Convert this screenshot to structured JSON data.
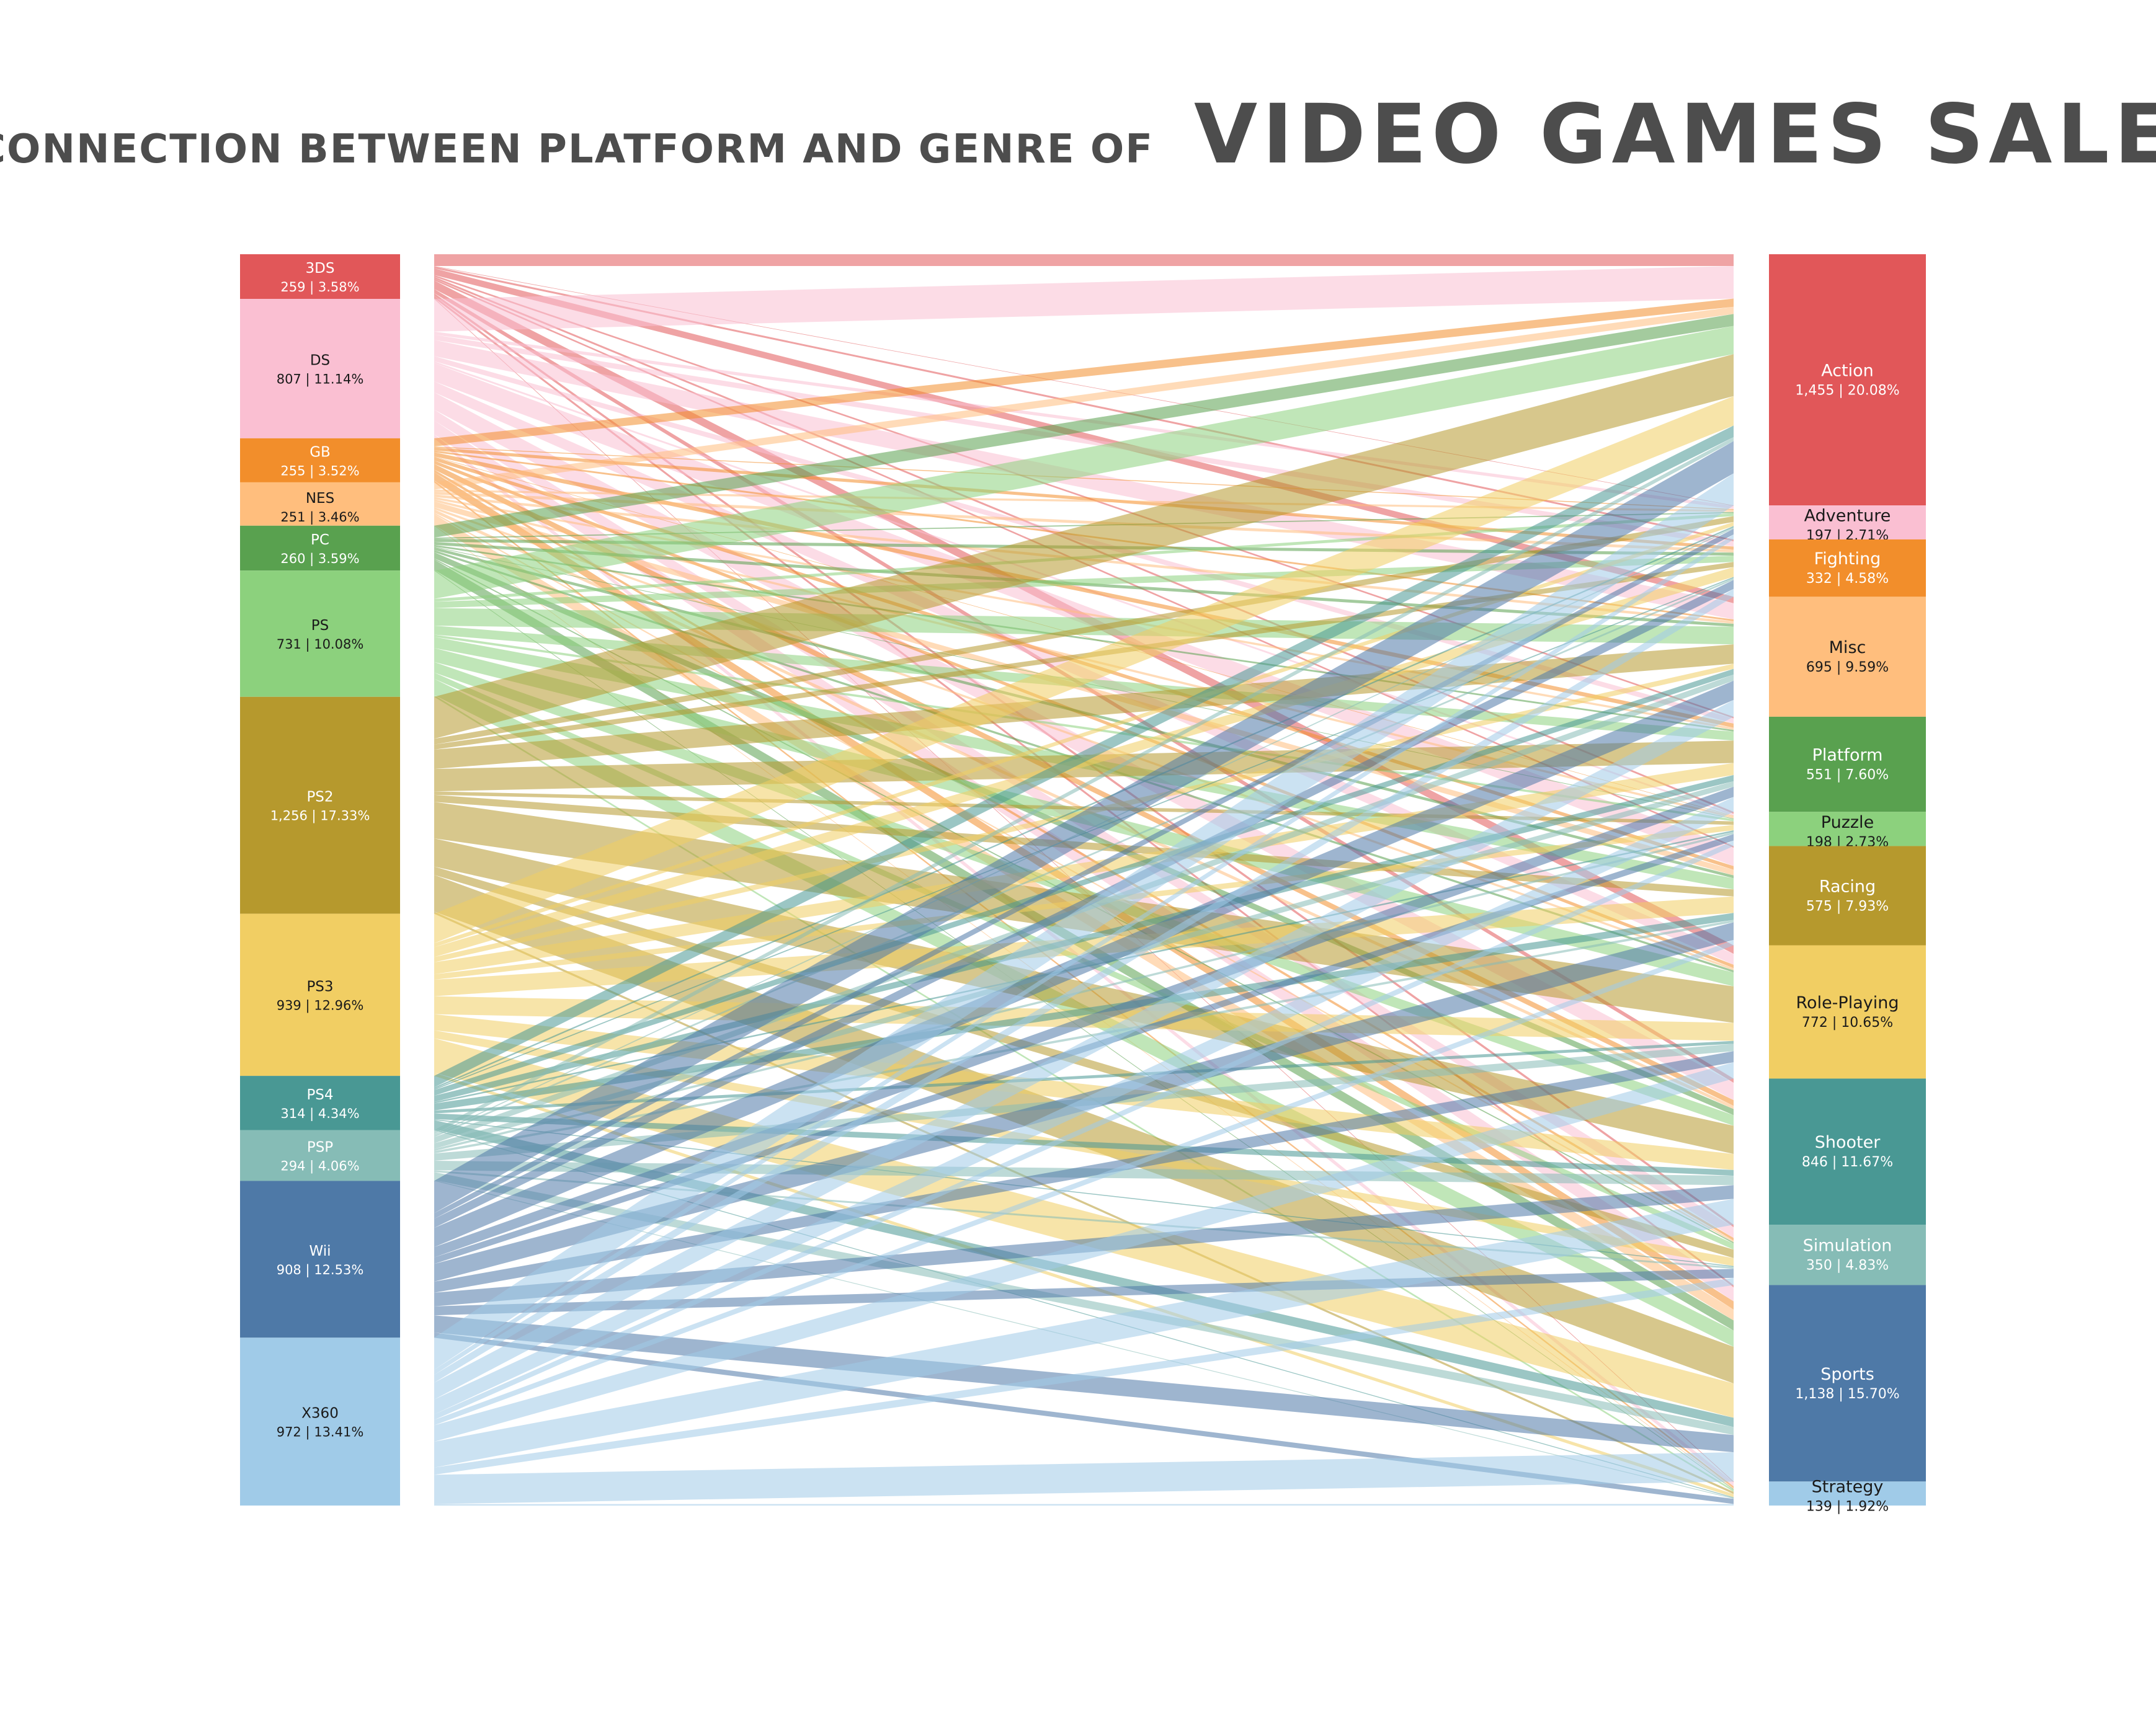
{
  "title": {
    "prefix": "CONNECTION BETWEEN PLATFORM AND GENRE OF",
    "main": "VIDEO GAMES SALES"
  },
  "chart_data": {
    "type": "sankey",
    "left_nodes": [
      {
        "name": "3DS",
        "value": 259,
        "value_label": "259",
        "pct_label": "3.58%",
        "color": "#e15759"
      },
      {
        "name": "DS",
        "value": 807,
        "value_label": "807",
        "pct_label": "11.14%",
        "color": "#fabfd2"
      },
      {
        "name": "GB",
        "value": 255,
        "value_label": "255",
        "pct_label": "3.52%",
        "color": "#f28e2b"
      },
      {
        "name": "NES",
        "value": 251,
        "value_label": "251",
        "pct_label": "3.46%",
        "color": "#ffbe7d"
      },
      {
        "name": "PC",
        "value": 260,
        "value_label": "260",
        "pct_label": "3.59%",
        "color": "#59a14f"
      },
      {
        "name": "PS",
        "value": 731,
        "value_label": "731",
        "pct_label": "10.08%",
        "color": "#8cd17d"
      },
      {
        "name": "PS2",
        "value": 1256,
        "value_label": "1,256",
        "pct_label": "17.33%",
        "color": "#b6992d"
      },
      {
        "name": "PS3",
        "value": 939,
        "value_label": "939",
        "pct_label": "12.96%",
        "color": "#f1ce63"
      },
      {
        "name": "PS4",
        "value": 314,
        "value_label": "314",
        "pct_label": "4.34%",
        "color": "#499894"
      },
      {
        "name": "PSP",
        "value": 294,
        "value_label": "294",
        "pct_label": "4.06%",
        "color": "#86bcb6"
      },
      {
        "name": "Wii",
        "value": 908,
        "value_label": "908",
        "pct_label": "12.53%",
        "color": "#4e79a7"
      },
      {
        "name": "X360",
        "value": 972,
        "value_label": "972",
        "pct_label": "13.41%",
        "color": "#a0cbe8"
      }
    ],
    "right_nodes": [
      {
        "name": "Action",
        "value": 1455,
        "value_label": "1,455",
        "pct_label": "20.08%",
        "color": "#e15759"
      },
      {
        "name": "Adventure",
        "value": 197,
        "value_label": "197",
        "pct_label": "2.71%",
        "color": "#fabfd2"
      },
      {
        "name": "Fighting",
        "value": 332,
        "value_label": "332",
        "pct_label": "4.58%",
        "color": "#f28e2b"
      },
      {
        "name": "Misc",
        "value": 695,
        "value_label": "695",
        "pct_label": "9.59%",
        "color": "#ffbe7d"
      },
      {
        "name": "Platform",
        "value": 551,
        "value_label": "551",
        "pct_label": "7.60%",
        "color": "#59a14f"
      },
      {
        "name": "Puzzle",
        "value": 198,
        "value_label": "198",
        "pct_label": "2.73%",
        "color": "#8cd17d"
      },
      {
        "name": "Racing",
        "value": 575,
        "value_label": "575",
        "pct_label": "7.93%",
        "color": "#b6992d"
      },
      {
        "name": "Role-Playing",
        "value": 772,
        "value_label": "772",
        "pct_label": "10.65%",
        "color": "#f1ce63"
      },
      {
        "name": "Shooter",
        "value": 846,
        "value_label": "846",
        "pct_label": "11.67%",
        "color": "#499894"
      },
      {
        "name": "Simulation",
        "value": 350,
        "value_label": "350",
        "pct_label": "4.83%",
        "color": "#86bcb6"
      },
      {
        "name": "Sports",
        "value": 1138,
        "value_label": "1,138",
        "pct_label": "15.70%",
        "color": "#4e79a7"
      },
      {
        "name": "Strategy",
        "value": 139,
        "value_label": "139",
        "pct_label": "1.92%",
        "color": "#a0cbe8"
      }
    ],
    "text_dark_on": [
      "DS",
      "NES",
      "PS",
      "PS3",
      "X360",
      "Adventure",
      "Misc",
      "Puzzle",
      "Role-Playing",
      "Strategy"
    ],
    "link_opacity": 0.55
  }
}
